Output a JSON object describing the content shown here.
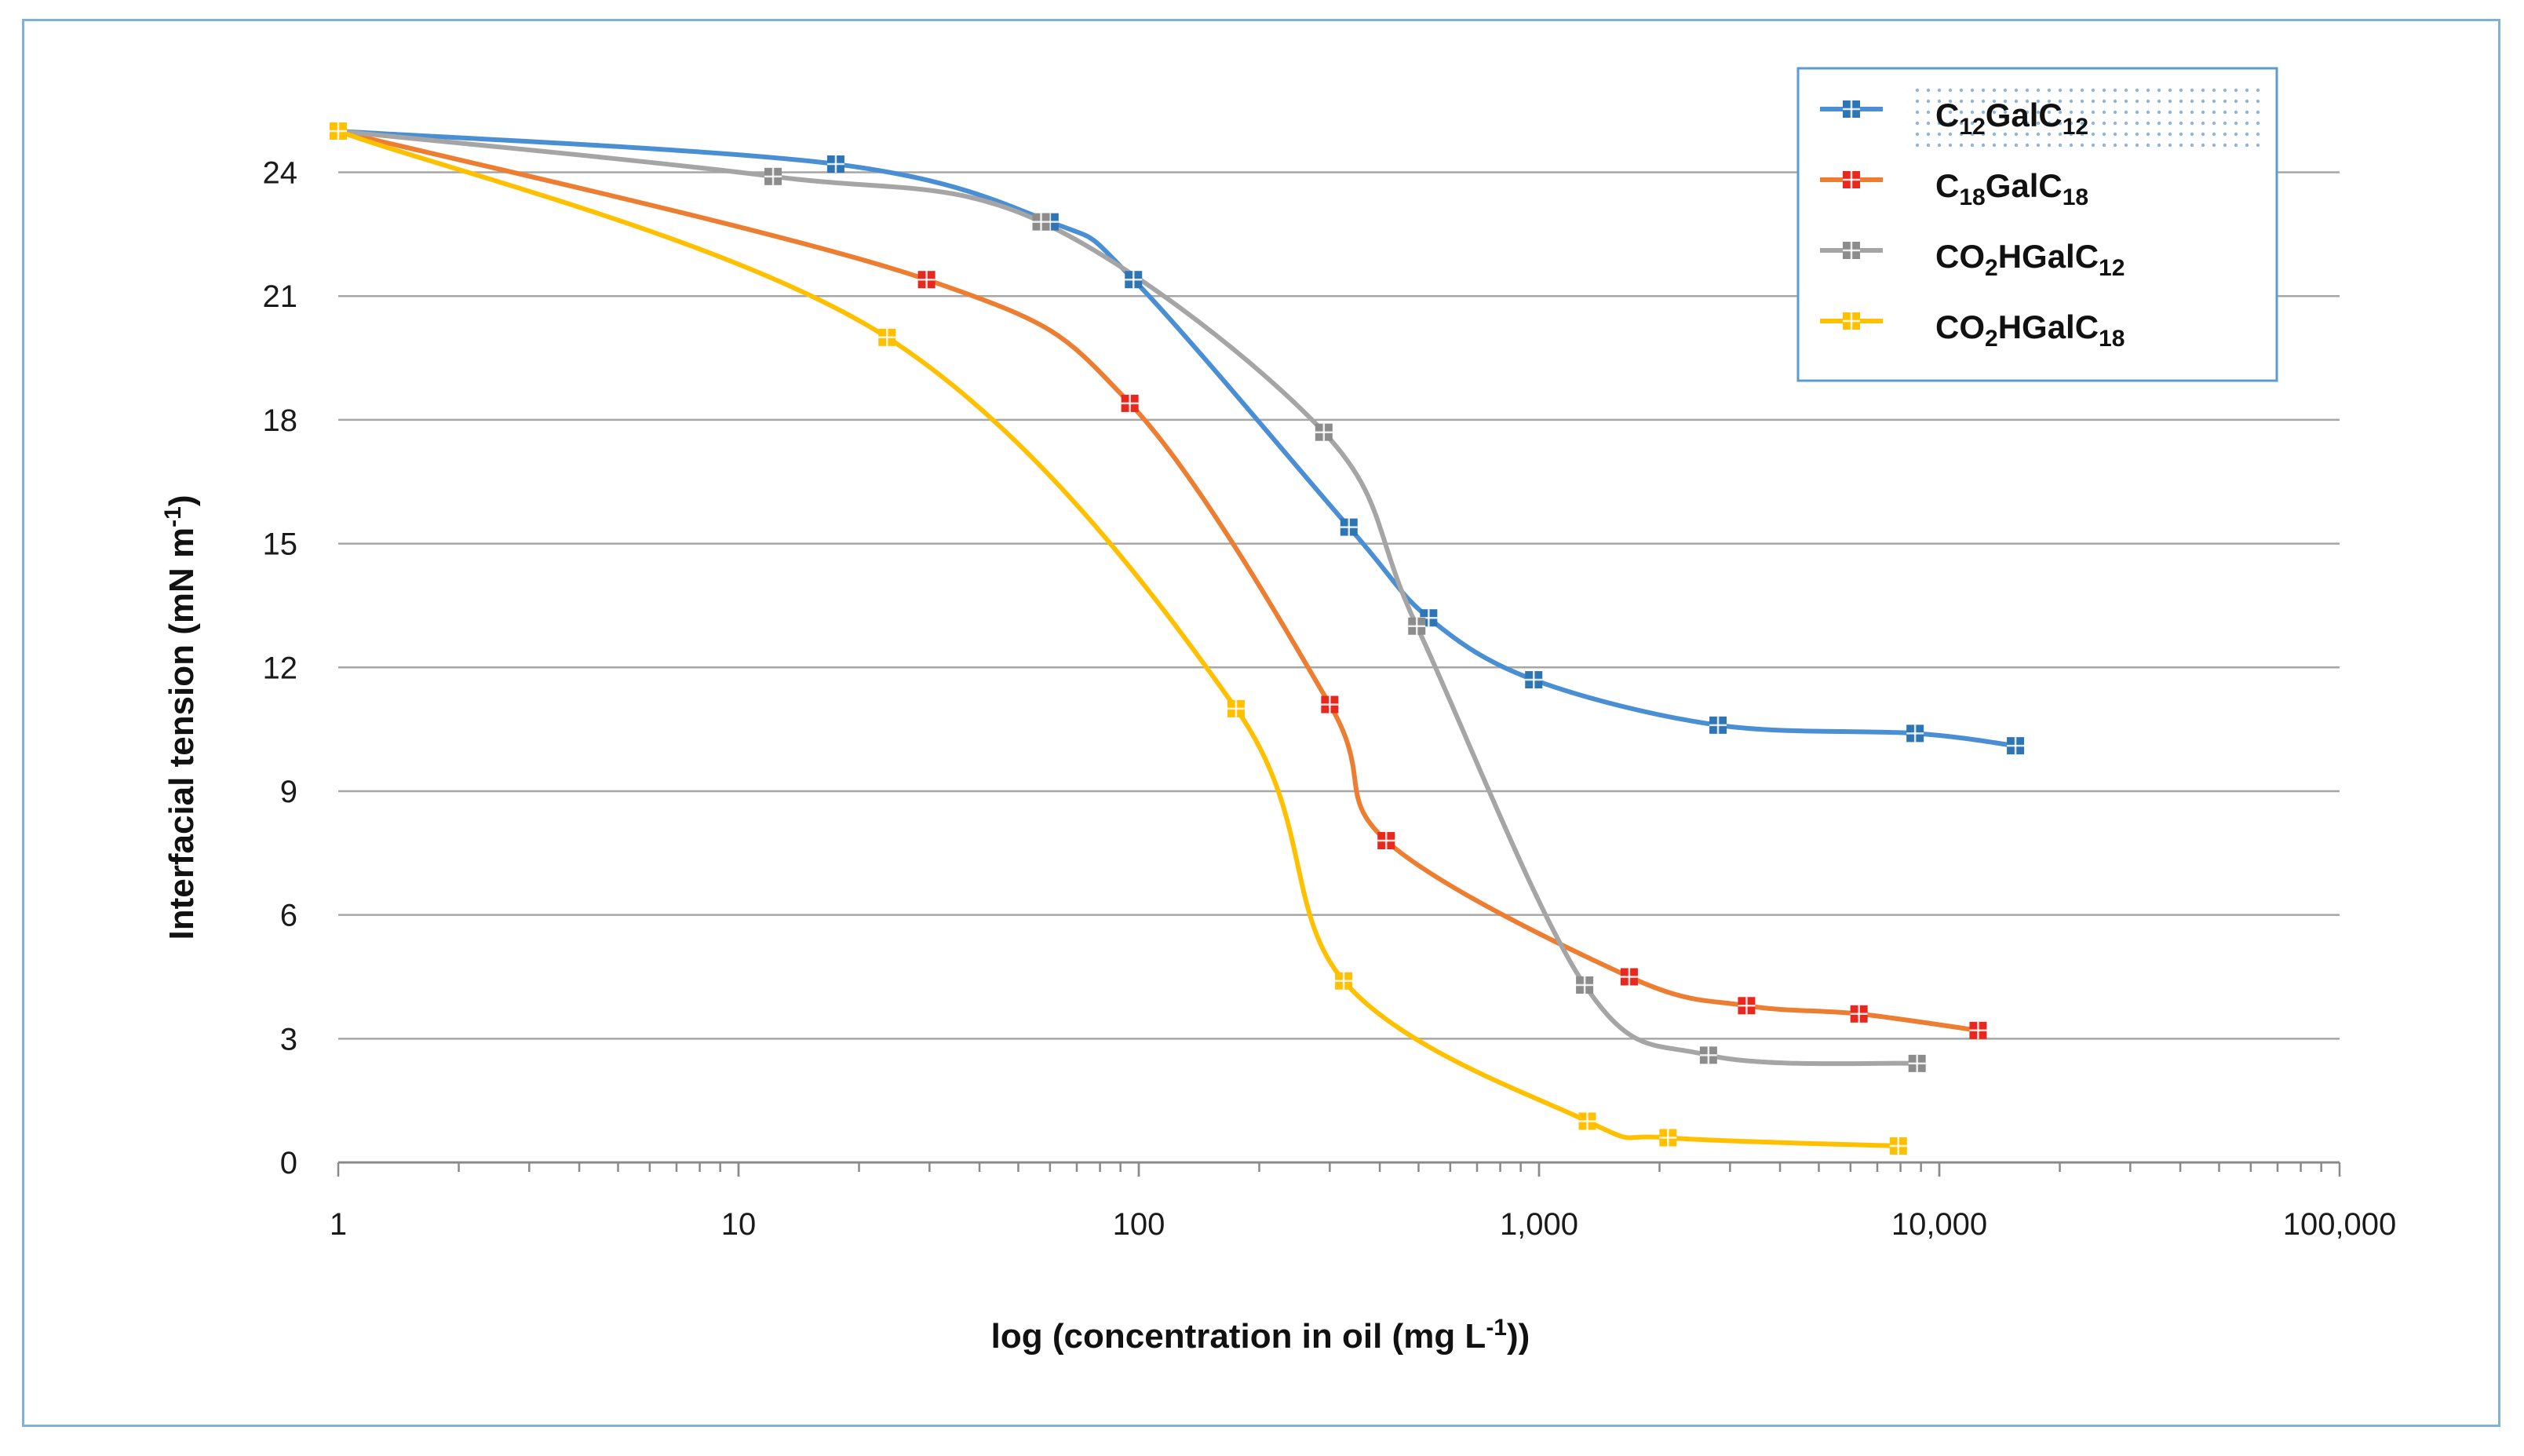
{
  "chart_data": {
    "type": "line",
    "title": "",
    "xscale": "log",
    "xlabel": {
      "main": "log (concentration in oil (mg L",
      "sup": "-1",
      "end": "))"
    },
    "ylabel": {
      "main": "Interfacial tension (mN m",
      "sup": "-1",
      "end": ")"
    },
    "xlim": [
      1,
      100000
    ],
    "ylim": [
      0,
      25
    ],
    "x_ticks": [
      {
        "value": 1,
        "label": "1"
      },
      {
        "value": 10,
        "label": "10"
      },
      {
        "value": 100,
        "label": "100"
      },
      {
        "value": 1000,
        "label": "1,000"
      },
      {
        "value": 10000,
        "label": "10,000"
      },
      {
        "value": 100000,
        "label": "100,000"
      }
    ],
    "y_ticks": [
      {
        "value": 0,
        "label": "0"
      },
      {
        "value": 3,
        "label": "3"
      },
      {
        "value": 6,
        "label": "6"
      },
      {
        "value": 9,
        "label": "9"
      },
      {
        "value": 12,
        "label": "12"
      },
      {
        "value": 15,
        "label": "15"
      },
      {
        "value": 18,
        "label": "18"
      },
      {
        "value": 21,
        "label": "21"
      },
      {
        "value": 24,
        "label": "24"
      }
    ],
    "grid": "horizontal",
    "legend_position": "top-right",
    "series": [
      {
        "name": "C12GalC12",
        "label_parts": [
          [
            "C",
            ""
          ],
          [
            "12",
            "sub"
          ],
          [
            "GalC",
            ""
          ],
          [
            "12",
            "sub"
          ]
        ],
        "color": "#4a8fd4",
        "marker_color": "#2e75b6",
        "points": [
          [
            1,
            25.0
          ],
          [
            17.5,
            24.2
          ],
          [
            60,
            22.8
          ],
          [
            97,
            21.4
          ],
          [
            335,
            15.4
          ],
          [
            530,
            13.2
          ],
          [
            970,
            11.7
          ],
          [
            2800,
            10.6
          ],
          [
            8700,
            10.4
          ],
          [
            15500,
            10.1
          ]
        ]
      },
      {
        "name": "C18GalC18",
        "label_parts": [
          [
            "C",
            ""
          ],
          [
            "18",
            "sub"
          ],
          [
            "GalC",
            ""
          ],
          [
            "18",
            "sub"
          ]
        ],
        "color": "#ed7d31",
        "marker_color": "#e8281e",
        "points": [
          [
            1,
            25.0
          ],
          [
            29.5,
            21.4
          ],
          [
            95,
            18.4
          ],
          [
            300,
            11.1
          ],
          [
            415,
            7.8
          ],
          [
            1680,
            4.5
          ],
          [
            3300,
            3.8
          ],
          [
            6300,
            3.6
          ],
          [
            12500,
            3.2
          ]
        ]
      },
      {
        "name": "CO2HGalC12",
        "label_parts": [
          [
            "CO",
            ""
          ],
          [
            "2",
            "sub"
          ],
          [
            "HGalC",
            ""
          ],
          [
            "12",
            "sub"
          ]
        ],
        "color": "#a5a5a5",
        "marker_color": "#8c8c8c",
        "points": [
          [
            1,
            25.0
          ],
          [
            12.2,
            23.9
          ],
          [
            57,
            22.8
          ],
          [
            290,
            17.7
          ],
          [
            495,
            13.0
          ],
          [
            1300,
            4.3
          ],
          [
            2650,
            2.6
          ],
          [
            8800,
            2.4
          ]
        ]
      },
      {
        "name": "CO2HGalC18",
        "label_parts": [
          [
            "CO",
            ""
          ],
          [
            "2",
            "sub"
          ],
          [
            "HGalC",
            ""
          ],
          [
            "18",
            "sub"
          ]
        ],
        "color": "#ffc000",
        "marker_color": "#ffc000",
        "points": [
          [
            1,
            25.0
          ],
          [
            23.5,
            20.0
          ],
          [
            175,
            11.0
          ],
          [
            325,
            4.4
          ],
          [
            1320,
            1.0
          ],
          [
            2100,
            0.6
          ],
          [
            7900,
            0.4
          ]
        ]
      }
    ]
  }
}
